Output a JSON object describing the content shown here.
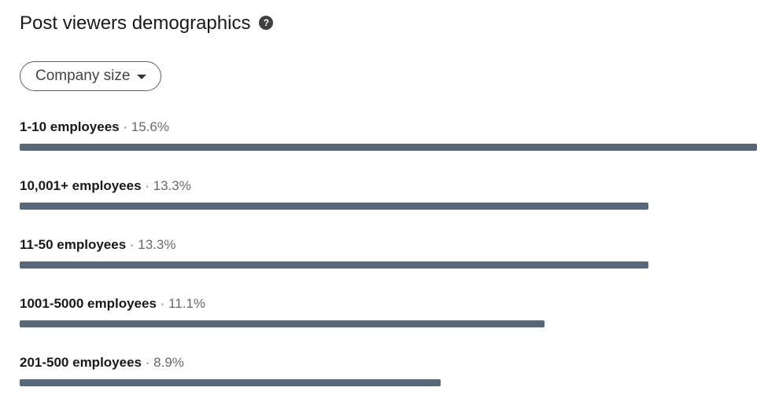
{
  "header": {
    "title": "Post viewers demographics",
    "help_icon": "question-circle-icon"
  },
  "filter": {
    "selected": "Company size"
  },
  "colors": {
    "bar": "#56687a"
  },
  "rows": [
    {
      "label": "1-10 employees",
      "separator": "·",
      "percent": "15.6%",
      "value": 15.6
    },
    {
      "label": "10,001+ employees",
      "separator": "·",
      "percent": "13.3%",
      "value": 13.3
    },
    {
      "label": "11-50 employees",
      "separator": "·",
      "percent": "13.3%",
      "value": 13.3
    },
    {
      "label": "1001-5000 employees",
      "separator": "·",
      "percent": "11.1%",
      "value": 11.1
    },
    {
      "label": "201-500 employees",
      "separator": "·",
      "percent": "8.9%",
      "value": 8.9
    }
  ]
}
